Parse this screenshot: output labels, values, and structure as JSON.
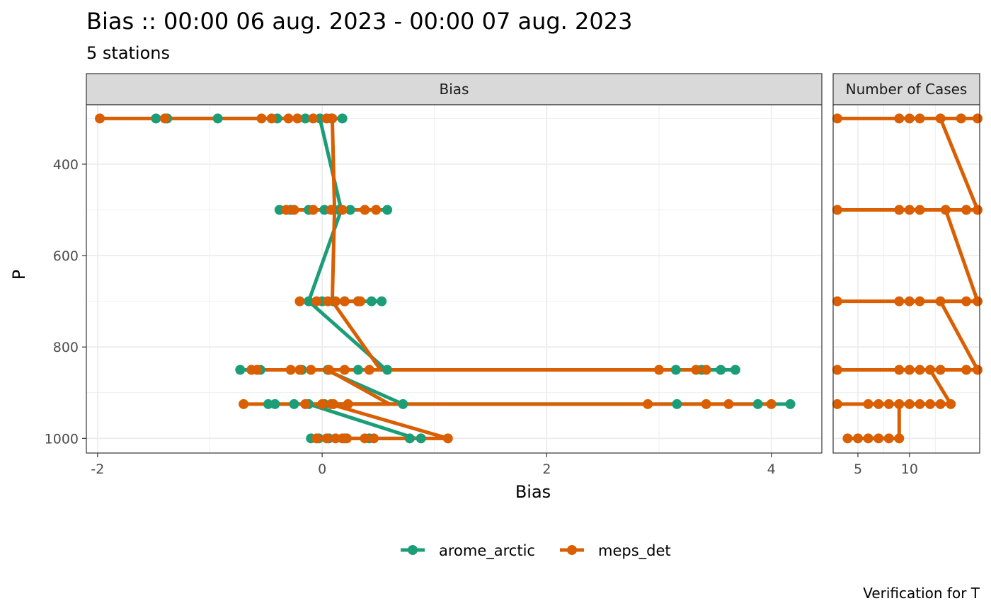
{
  "title": "Bias :: 00:00 06 aug. 2023 - 00:00 07 aug. 2023",
  "subtitle": "5 stations",
  "caption": "Verification for T",
  "colors": {
    "arome_arctic": "#1b9e77",
    "meps_det": "#d95f02",
    "strip_bg": "#d9d9d9",
    "grid_major": "#ebebeb",
    "panel_border": "#333333"
  },
  "chart_data": [
    {
      "type": "line",
      "panel_strip": "Bias",
      "xlabel": "Bias",
      "ylabel": "P",
      "x_ticks": [
        "-2",
        "0",
        "2",
        "4"
      ],
      "y_ticks": [
        "400",
        "600",
        "800",
        "1000"
      ],
      "xlim": [
        -2.1,
        4.45
      ],
      "ylim": [
        270,
        1032
      ],
      "y_reversed": true,
      "grid": true,
      "legend_position": "bottom",
      "series": [
        {
          "name": "arome_arctic",
          "points": [
            {
              "p": 300,
              "bias": [
                -1.48,
                -1.38,
                -0.93,
                -0.4,
                -0.15,
                -0.02,
                0.08,
                0.18
              ]
            },
            {
              "p": 500,
              "bias": [
                -0.38,
                -0.28,
                -0.12,
                0.02,
                0.15,
                0.25,
                0.58
              ]
            },
            {
              "p": 700,
              "bias": [
                -0.12,
                0.0,
                0.1,
                0.2,
                0.32,
                0.44,
                0.53
              ]
            },
            {
              "p": 850,
              "bias": [
                -0.73,
                -0.55,
                -0.18,
                0.05,
                0.32,
                0.58,
                3.15,
                3.38,
                3.55,
                3.68
              ]
            },
            {
              "p": 925,
              "bias": [
                -0.48,
                -0.42,
                -0.25,
                -0.12,
                0.02,
                0.72,
                3.16,
                3.88,
                4.17
              ]
            },
            {
              "p": 1000,
              "bias": [
                -0.1,
                -0.03,
                0.06,
                0.2,
                0.42,
                0.78,
                0.88
              ]
            }
          ],
          "profile": [
            {
              "p": 300,
              "bias": -0.02
            },
            {
              "p": 500,
              "bias": 0.17
            },
            {
              "p": 700,
              "bias": -0.12
            },
            {
              "p": 850,
              "bias": 0.57
            },
            {
              "p": 850,
              "bias": 0.03
            },
            {
              "p": 925,
              "bias": 0.72
            },
            {
              "p": 925,
              "bias": -0.12
            },
            {
              "p": 1000,
              "bias": 0.83
            }
          ]
        },
        {
          "name": "meps_det",
          "points": [
            {
              "p": 300,
              "bias": [
                -1.98,
                -1.4,
                -0.54,
                -0.45,
                -0.3,
                -0.22,
                -0.08,
                0.04,
                0.09
              ]
            },
            {
              "p": 500,
              "bias": [
                -0.32,
                -0.25,
                -0.08,
                0.08,
                0.18,
                0.38,
                0.48
              ]
            },
            {
              "p": 700,
              "bias": [
                -0.2,
                -0.05,
                0.05,
                0.12,
                0.2,
                0.32,
                0.34
              ]
            },
            {
              "p": 850,
              "bias": [
                -0.63,
                -0.58,
                -0.28,
                -0.2,
                -0.1,
                0.06,
                0.2,
                0.42,
                3.0,
                3.33,
                3.42
              ]
            },
            {
              "p": 925,
              "bias": [
                -0.7,
                -0.15,
                0.0,
                0.08,
                0.1,
                0.23,
                2.9,
                3.42,
                3.62,
                4.0
              ]
            },
            {
              "p": 1000,
              "bias": [
                -0.05,
                0.04,
                0.12,
                0.18,
                0.22,
                0.38,
                0.46,
                1.12
              ]
            }
          ],
          "profile": [
            {
              "p": 300,
              "bias": 0.09
            },
            {
              "p": 500,
              "bias": 0.11
            },
            {
              "p": 700,
              "bias": 0.09
            },
            {
              "p": 850,
              "bias": 0.52
            },
            {
              "p": 850,
              "bias": 0.05
            },
            {
              "p": 925,
              "bias": 0.6
            },
            {
              "p": 925,
              "bias": 0.07
            },
            {
              "p": 1000,
              "bias": 1.12
            }
          ]
        }
      ]
    },
    {
      "type": "line",
      "panel_strip": "Number of Cases",
      "x_ticks": [
        "5",
        "10"
      ],
      "xlim": [
        2.6,
        16.8
      ],
      "ylim": [
        270,
        1032
      ],
      "y_reversed": true,
      "series": [
        {
          "name": "meps_det",
          "points": [
            {
              "p": 300,
              "cases": [
                3,
                9,
                10,
                11,
                13,
                15,
                16.6
              ]
            },
            {
              "p": 500,
              "cases": [
                3,
                9,
                10,
                11,
                13.5,
                15.5,
                16.6
              ]
            },
            {
              "p": 700,
              "cases": [
                3,
                9,
                10,
                11,
                13,
                15.5,
                16.6
              ]
            },
            {
              "p": 850,
              "cases": [
                3,
                9,
                10,
                11,
                12,
                13,
                15.5,
                16.6
              ]
            },
            {
              "p": 925,
              "cases": [
                3,
                6,
                7,
                8,
                9,
                10,
                11,
                12,
                13,
                14
              ]
            },
            {
              "p": 1000,
              "cases": [
                4,
                5,
                6,
                7,
                8,
                9
              ]
            }
          ],
          "profile": [
            {
              "p": 300,
              "cases": 13
            },
            {
              "p": 500,
              "cases": 16.6
            },
            {
              "p": 500,
              "cases": 13.5
            },
            {
              "p": 700,
              "cases": 16.6
            },
            {
              "p": 700,
              "cases": 13
            },
            {
              "p": 850,
              "cases": 16.6
            },
            {
              "p": 850,
              "cases": 12
            },
            {
              "p": 925,
              "cases": 14
            },
            {
              "p": 925,
              "cases": 9
            },
            {
              "p": 1000,
              "cases": 9
            }
          ]
        }
      ]
    }
  ],
  "legend": {
    "items": [
      {
        "label": "arome_arctic",
        "series": "arome_arctic"
      },
      {
        "label": "meps_det",
        "series": "meps_det"
      }
    ]
  }
}
